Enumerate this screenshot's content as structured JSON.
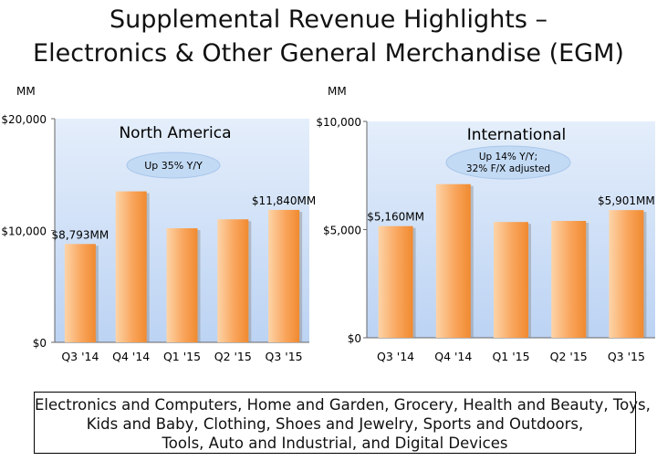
{
  "title": {
    "line1": "Supplemental Revenue Highlights –",
    "line2": "Electronics & Other General Merchandise (EGM)"
  },
  "footer": {
    "line1": "Electronics and Computers, Home and Garden, Grocery, Health and Beauty, Toys,",
    "line2": "Kids and Baby, Clothing, Shoes and Jewelry, Sports and Outdoors,",
    "line3": "Tools, Auto and Industrial, and Digital Devices"
  },
  "colors": {
    "bar": "#f79646",
    "plot_bg": "#cfe0f7",
    "oval": "#c6dbf3"
  },
  "chart_data": [
    {
      "type": "bar",
      "title": "North America",
      "unit_label": "MM",
      "note": "Up 35% Y/Y",
      "categories": [
        "Q3 '14",
        "Q4 '14",
        "Q1 '15",
        "Q2 '15",
        "Q3 '15"
      ],
      "values": [
        8793,
        13500,
        10200,
        11000,
        11840
      ],
      "data_labels": [
        "$8,793MM",
        "",
        "",
        "",
        "$11,840MM"
      ],
      "yticks": [
        "$0",
        "$10,000",
        "$20,000"
      ],
      "ylim": [
        0,
        20000
      ],
      "grid": false
    },
    {
      "type": "bar",
      "title": "International",
      "unit_label": "MM",
      "note": "Up 14% Y/Y; 32% F/X adjusted",
      "categories": [
        "Q3 '14",
        "Q4 '14",
        "Q1 '15",
        "Q2 '15",
        "Q3 '15"
      ],
      "values": [
        5160,
        7100,
        5350,
        5400,
        5901
      ],
      "data_labels": [
        "$5,160MM",
        "",
        "",
        "",
        "$5,901MM"
      ],
      "yticks": [
        "$0",
        "$5,000",
        "$10,000"
      ],
      "ylim": [
        0,
        10000
      ],
      "grid": false
    }
  ]
}
